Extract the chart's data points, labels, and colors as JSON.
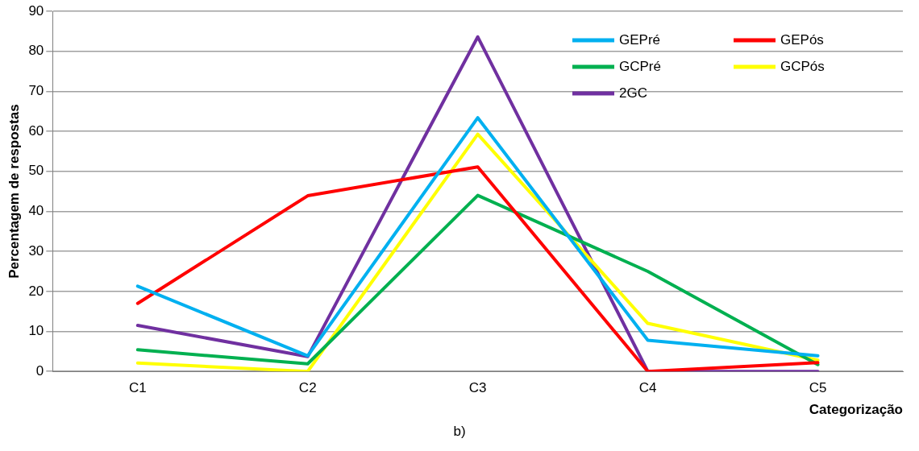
{
  "chart_data": {
    "type": "line",
    "xlabel": "Categorização",
    "ylabel": "Percentagem de respostas",
    "annotations": [
      "b)"
    ],
    "categories": [
      "C1",
      "C2",
      "C3",
      "C4",
      "C5"
    ],
    "series": [
      {
        "name": "GEPré",
        "color": "#00b0f0",
        "values": [
          21.3,
          3.9,
          63.4,
          7.8,
          3.9
        ]
      },
      {
        "name": "GEPós",
        "color": "#ff0000",
        "values": [
          17,
          43.9,
          51.1,
          0,
          2.2
        ]
      },
      {
        "name": "GCPré",
        "color": "#00b050",
        "values": [
          5.4,
          1.9,
          44,
          25,
          1.7
        ]
      },
      {
        "name": "GCPós",
        "color": "#ffff00",
        "values": [
          2.1,
          0,
          59.3,
          12,
          2.8
        ]
      },
      {
        "name": "2GC",
        "color": "#7030a0",
        "values": [
          11.5,
          3.7,
          83.6,
          0,
          0
        ]
      }
    ],
    "ylim": [
      0,
      90
    ],
    "yticks": [
      0,
      10,
      20,
      30,
      40,
      50,
      60,
      70,
      80,
      90
    ],
    "grid": "y",
    "legend": "top right",
    "marker": "none",
    "line_style": "solid"
  }
}
